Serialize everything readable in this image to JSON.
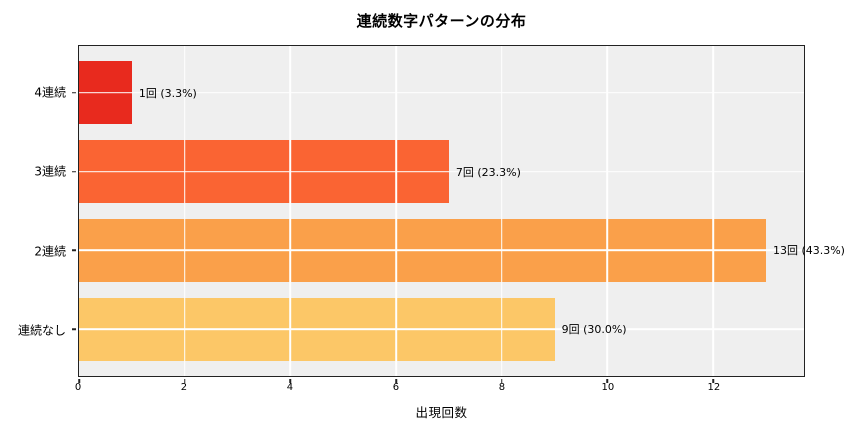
{
  "figure": {
    "background": "#ffffff",
    "plot_background": "#efefef",
    "spine_color": "#222222",
    "grid_color": "#ffffff",
    "text_color": "#000000"
  },
  "chart_data": {
    "type": "bar",
    "orientation": "horizontal",
    "title": "連続数字パターンの分布",
    "xlabel": "出現回数",
    "ylabel": "",
    "categories": [
      "4連続",
      "3連続",
      "2連続",
      "連続なし"
    ],
    "values": [
      1,
      7,
      13,
      9
    ],
    "bar_labels": [
      "1回 (3.3%)",
      "7回 (23.3%)",
      "13回 (43.3%)",
      "9回 (30.0%)"
    ],
    "percentages": [
      3.3,
      23.3,
      43.3,
      30.0
    ],
    "bar_colors": [
      "#e82a1e",
      "#fa6433",
      "#faa04a",
      "#fcc767"
    ],
    "xlim": [
      0,
      13.72
    ],
    "xticks": [
      0,
      2,
      4,
      6,
      8,
      10,
      12
    ],
    "grid": true,
    "grid_over_bars": true,
    "legend": false
  }
}
